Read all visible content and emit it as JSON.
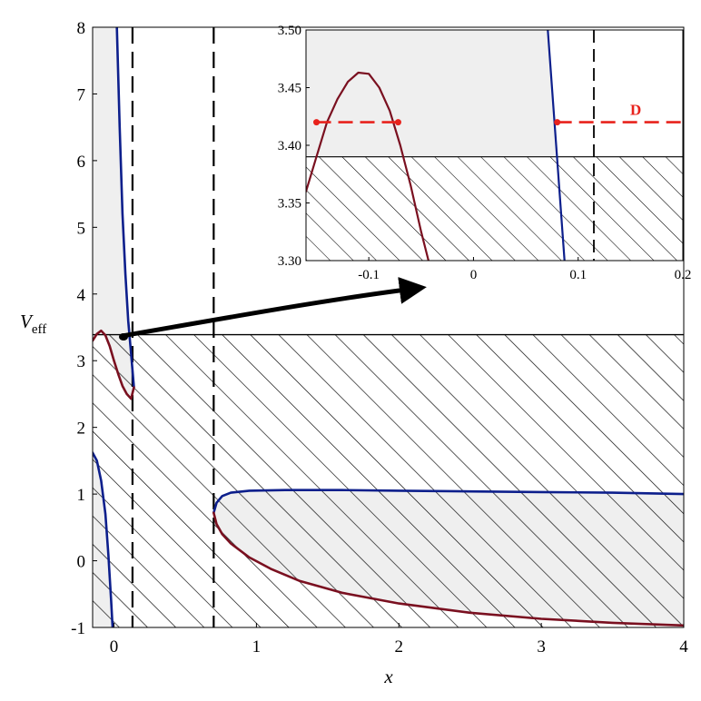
{
  "chart_data": [
    {
      "type": "line",
      "title": "",
      "xlabel": "x",
      "ylabel": "V",
      "ylabel_sub": "eff",
      "xlim": [
        -0.15,
        4.0
      ],
      "ylim": [
        -1,
        8
      ],
      "xticks": [
        0,
        1,
        2,
        3,
        4
      ],
      "xtick_labels": [
        "0",
        "1",
        "2",
        "3",
        "4"
      ],
      "yticks": [
        -1,
        0,
        1,
        2,
        3,
        4,
        5,
        6,
        7,
        8
      ],
      "ytick_labels": [
        "-1",
        "0",
        "1",
        "2",
        "3",
        "4",
        "5",
        "6",
        "7",
        "8"
      ],
      "grid": false,
      "hatched_region_below": 3.39,
      "shaded_forbidden_regions": true,
      "vertical_dashed_lines_x": [
        0.13,
        0.7
      ],
      "series": [
        {
          "color": "#0d1f8c",
          "points": [
            [
              0.02,
              8.0
            ],
            [
              0.04,
              6.5
            ],
            [
              0.06,
              5.2
            ],
            [
              0.08,
              4.3
            ],
            [
              0.1,
              3.6
            ],
            [
              0.12,
              3.1
            ],
            [
              0.14,
              2.6
            ]
          ]
        },
        {
          "color": "#7a1020",
          "points": [
            [
              -0.15,
              3.3
            ],
            [
              -0.12,
              3.4
            ],
            [
              -0.09,
              3.45
            ],
            [
              -0.06,
              3.38
            ],
            [
              -0.03,
              3.22
            ],
            [
              0.0,
              3.0
            ],
            [
              0.03,
              2.8
            ],
            [
              0.06,
              2.62
            ],
            [
              0.09,
              2.5
            ],
            [
              0.12,
              2.43
            ],
            [
              0.14,
              2.6
            ]
          ]
        },
        {
          "color": "#0d1f8c",
          "points": [
            [
              -0.15,
              1.62
            ],
            [
              -0.12,
              1.5
            ],
            [
              -0.09,
              1.2
            ],
            [
              -0.06,
              0.7
            ],
            [
              -0.04,
              0.1
            ],
            [
              -0.02,
              -0.6
            ],
            [
              -0.01,
              -1.0
            ]
          ]
        },
        {
          "color": "#0d1f8c",
          "points": [
            [
              0.7,
              0.72
            ],
            [
              0.72,
              0.87
            ],
            [
              0.76,
              0.97
            ],
            [
              0.82,
              1.02
            ],
            [
              0.95,
              1.05
            ],
            [
              1.2,
              1.06
            ],
            [
              1.6,
              1.06
            ],
            [
              2.0,
              1.05
            ],
            [
              2.5,
              1.04
            ],
            [
              3.0,
              1.03
            ],
            [
              3.5,
              1.02
            ],
            [
              4.0,
              1.0
            ]
          ]
        },
        {
          "color": "#7a1020",
          "points": [
            [
              0.7,
              0.72
            ],
            [
              0.72,
              0.55
            ],
            [
              0.76,
              0.4
            ],
            [
              0.82,
              0.26
            ],
            [
              0.95,
              0.05
            ],
            [
              1.1,
              -0.12
            ],
            [
              1.3,
              -0.3
            ],
            [
              1.6,
              -0.48
            ],
            [
              2.0,
              -0.64
            ],
            [
              2.5,
              -0.78
            ],
            [
              3.0,
              -0.87
            ],
            [
              3.5,
              -0.93
            ],
            [
              4.0,
              -0.97
            ]
          ]
        }
      ]
    },
    {
      "type": "line",
      "title": "",
      "xlabel": "",
      "ylabel": "",
      "xlim": [
        -0.16,
        0.2
      ],
      "ylim": [
        3.3,
        3.5
      ],
      "xticks": [
        -0.1,
        0,
        0.1,
        0.2
      ],
      "xtick_labels": [
        "-0.1",
        "0",
        "0.1",
        "0.2"
      ],
      "yticks": [
        3.3,
        3.35,
        3.4,
        3.45,
        3.5
      ],
      "ytick_labels": [
        "3.30",
        "3.35",
        "3.40",
        "3.45",
        "3.50"
      ],
      "grid": false,
      "hatched_region_below": 3.39,
      "vertical_dashed_lines_x": [
        0.115
      ],
      "annotation": {
        "label": "D",
        "x": 0.155,
        "y": 3.42,
        "color": "#e8221c"
      },
      "level_line": {
        "y": 3.42,
        "color": "#e8221c",
        "segments": [
          [
            -0.15,
            -0.072
          ],
          [
            0.08,
            0.2
          ]
        ]
      },
      "turning_points": [
        [
          -0.15,
          3.42
        ],
        [
          -0.072,
          3.42
        ],
        [
          0.08,
          3.42
        ]
      ],
      "series": [
        {
          "color": "#7a1020",
          "points": [
            [
              -0.16,
              3.36
            ],
            [
              -0.15,
              3.39
            ],
            [
              -0.14,
              3.42
            ],
            [
              -0.13,
              3.44
            ],
            [
              -0.12,
              3.455
            ],
            [
              -0.11,
              3.463
            ],
            [
              -0.1,
              3.462
            ],
            [
              -0.09,
              3.45
            ],
            [
              -0.08,
              3.43
            ],
            [
              -0.07,
              3.4
            ],
            [
              -0.06,
              3.365
            ],
            [
              -0.05,
              3.325
            ],
            [
              -0.043,
              3.3
            ]
          ]
        },
        {
          "color": "#0d1f8c",
          "points": [
            [
              0.071,
              3.5
            ],
            [
              0.075,
              3.45
            ],
            [
              0.079,
              3.4
            ],
            [
              0.083,
              3.35
            ],
            [
              0.087,
              3.3
            ]
          ]
        }
      ]
    }
  ]
}
